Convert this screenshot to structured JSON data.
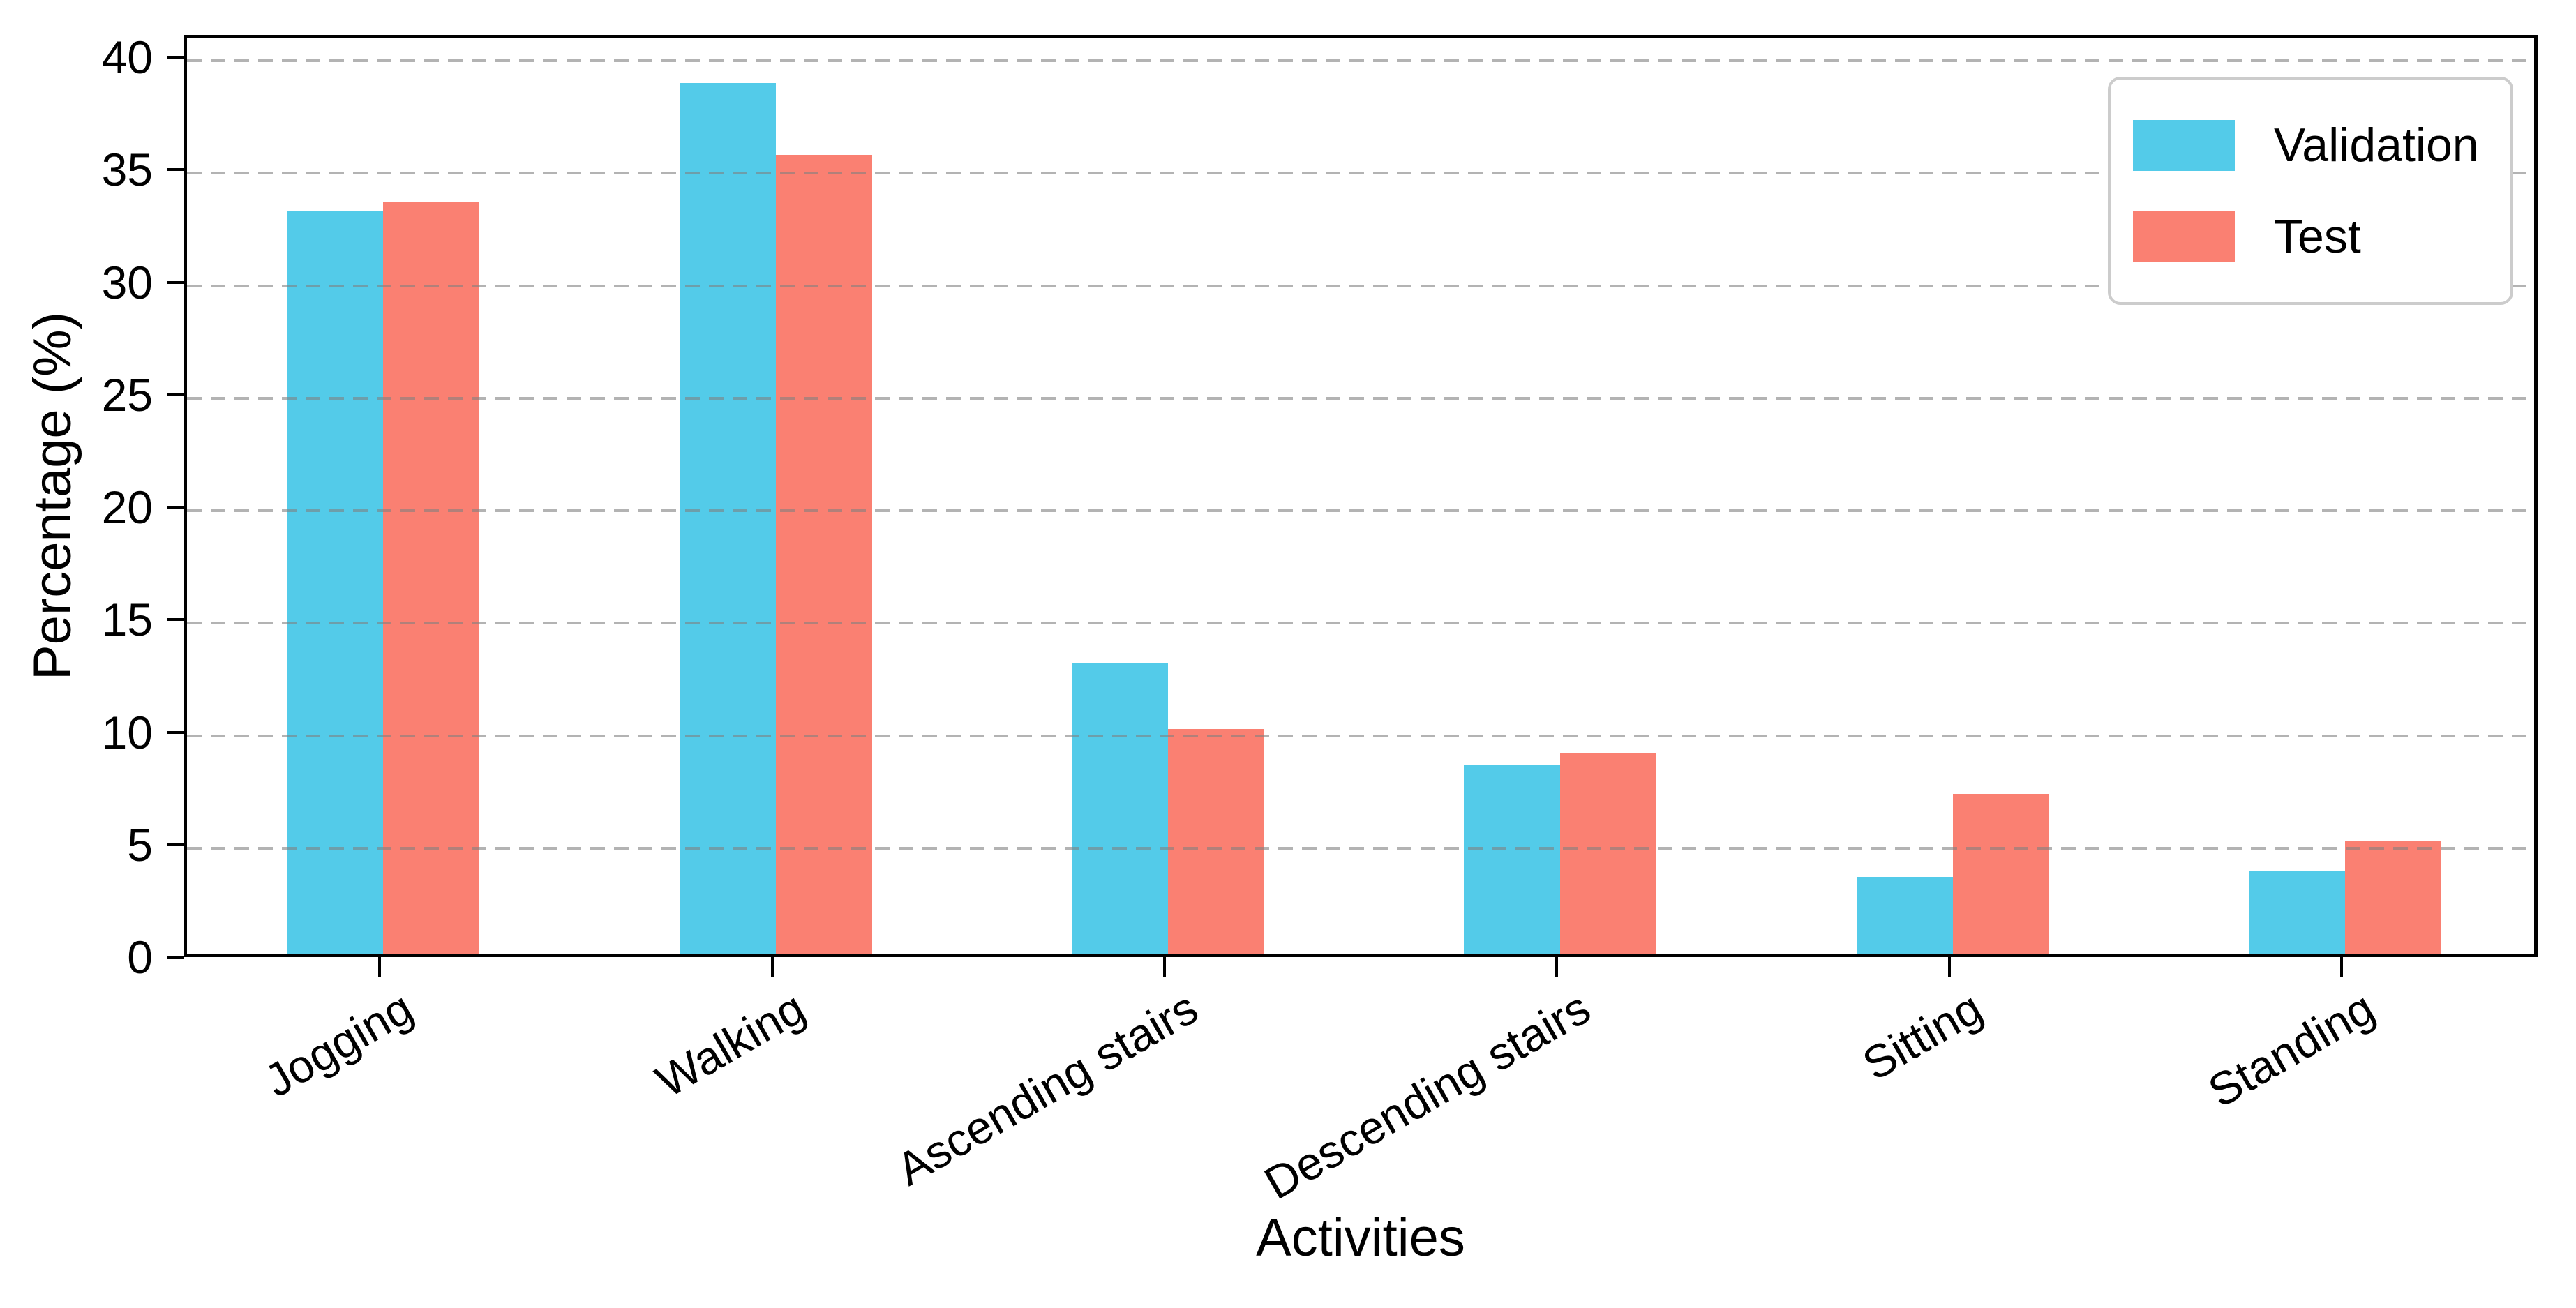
{
  "chart_data": {
    "type": "bar",
    "title": "",
    "xlabel": "Activities",
    "ylabel": "Percentage (%)",
    "categories": [
      "Jogging",
      "Walking",
      "Ascending stairs",
      "Descending stairs",
      "Sitting",
      "Standing"
    ],
    "series": [
      {
        "name": "Validation",
        "color": "#53CBE9",
        "values": [
          33.0,
          38.7,
          12.9,
          8.4,
          3.4,
          3.7
        ]
      },
      {
        "name": "Test",
        "color": "#FA8072",
        "values": [
          33.4,
          35.5,
          10.0,
          8.9,
          7.1,
          5.0
        ]
      }
    ],
    "yticks": [
      0,
      5,
      10,
      15,
      20,
      25,
      30,
      35,
      40
    ],
    "ylim": [
      0,
      41
    ],
    "grid": "horizontal-dashed",
    "grid_color": "#b0b0b0",
    "legend_position": "upper-right",
    "xtick_rotation_deg": 30
  }
}
